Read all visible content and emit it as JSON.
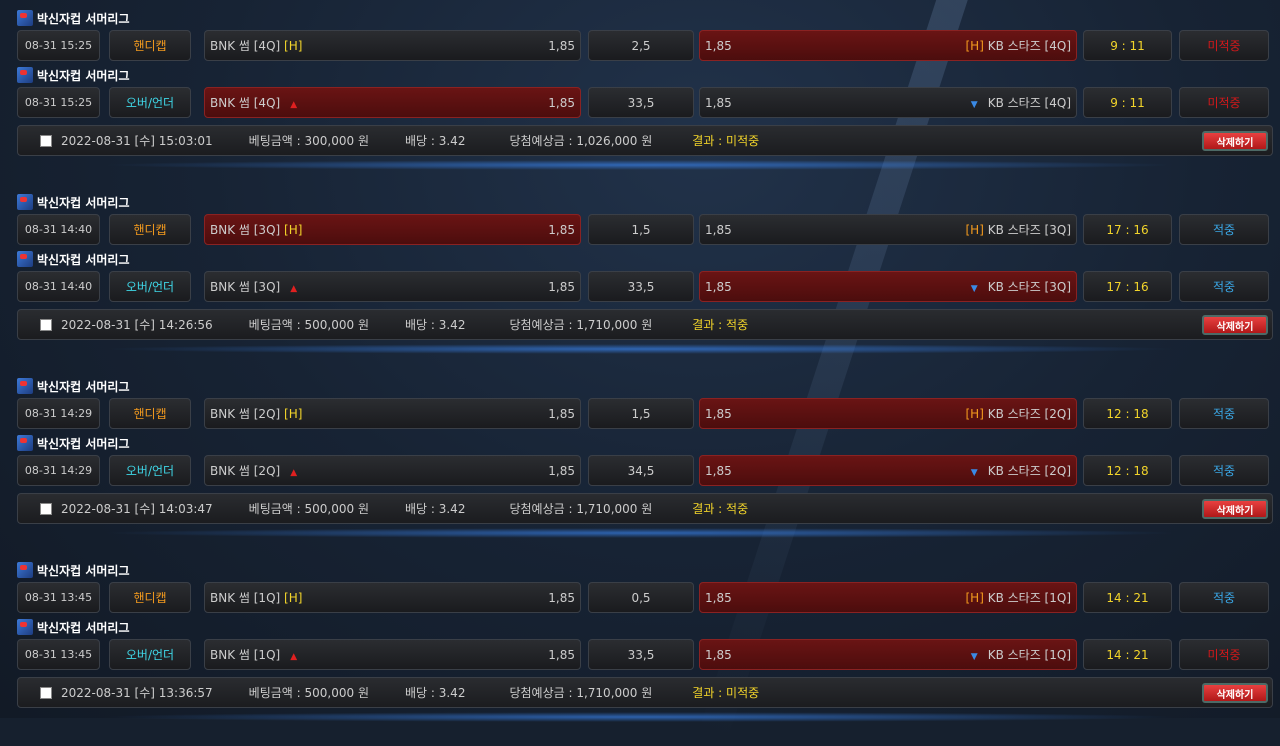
{
  "colors": {
    "selected": "#6a1414",
    "score": "#f2d42a",
    "win": "#3aa7e6",
    "lose": "#d3181a",
    "handicap": "#f39a1e",
    "overunder": "#3fd6e6"
  },
  "delete_label": "삭제하기",
  "groups": [
    {
      "bets": [
        {
          "league": "박신자컵 서머리그",
          "date": "08-31 15:25",
          "type": "핸디캡",
          "type_kind": "handicap",
          "home": "BNK 썸 [4Q]",
          "home_tag": "[H]",
          "home_odds": "1,85",
          "line": "2,5",
          "away_odds": "1,85",
          "away": "KB 스타즈 [4Q]",
          "away_tag": "[H]",
          "score": "9 : 11",
          "result": "미적중",
          "result_kind": "lose",
          "selected": "away"
        },
        {
          "league": "박신자컵 서머리그",
          "date": "08-31 15:25",
          "type": "오버/언더",
          "type_kind": "overunder",
          "home": "BNK 썸 [4Q]",
          "home_odds": "1,85",
          "line": "33,5",
          "away_odds": "1,85",
          "away": "KB 스타즈 [4Q]",
          "score": "9 : 11",
          "result": "미적중",
          "result_kind": "lose",
          "selected": "home"
        }
      ],
      "summary": {
        "datetime": "2022-08-31 [수] 15:03:01",
        "amount": "베팅금액 : 300,000 원",
        "odds": "배당 : 3.42",
        "expected": "당첨예상금 : 1,026,000 원",
        "result": "결과 : 미적중"
      }
    },
    {
      "bets": [
        {
          "league": "박신자컵 서머리그",
          "date": "08-31 14:40",
          "type": "핸디캡",
          "type_kind": "handicap",
          "home": "BNK 썸 [3Q]",
          "home_tag": "[H]",
          "home_odds": "1,85",
          "line": "1,5",
          "away_odds": "1,85",
          "away": "KB 스타즈 [3Q]",
          "away_tag": "[H]",
          "score": "17 : 16",
          "result": "적중",
          "result_kind": "win",
          "selected": "home"
        },
        {
          "league": "박신자컵 서머리그",
          "date": "08-31 14:40",
          "type": "오버/언더",
          "type_kind": "overunder",
          "home": "BNK 썸 [3Q]",
          "home_odds": "1,85",
          "line": "33,5",
          "away_odds": "1,85",
          "away": "KB 스타즈 [3Q]",
          "score": "17 : 16",
          "result": "적중",
          "result_kind": "win",
          "selected": "away"
        }
      ],
      "summary": {
        "datetime": "2022-08-31 [수] 14:26:56",
        "amount": "베팅금액 : 500,000 원",
        "odds": "배당 : 3.42",
        "expected": "당첨예상금 : 1,710,000 원",
        "result": "결과 : 적중"
      }
    },
    {
      "bets": [
        {
          "league": "박신자컵 서머리그",
          "date": "08-31 14:29",
          "type": "핸디캡",
          "type_kind": "handicap",
          "home": "BNK 썸 [2Q]",
          "home_tag": "[H]",
          "home_odds": "1,85",
          "line": "1,5",
          "away_odds": "1,85",
          "away": "KB 스타즈 [2Q]",
          "away_tag": "[H]",
          "score": "12 : 18",
          "result": "적중",
          "result_kind": "win",
          "selected": "away"
        },
        {
          "league": "박신자컵 서머리그",
          "date": "08-31 14:29",
          "type": "오버/언더",
          "type_kind": "overunder",
          "home": "BNK 썸 [2Q]",
          "home_odds": "1,85",
          "line": "34,5",
          "away_odds": "1,85",
          "away": "KB 스타즈 [2Q]",
          "score": "12 : 18",
          "result": "적중",
          "result_kind": "win",
          "selected": "away"
        }
      ],
      "summary": {
        "datetime": "2022-08-31 [수] 14:03:47",
        "amount": "베팅금액 : 500,000 원",
        "odds": "배당 : 3.42",
        "expected": "당첨예상금 : 1,710,000 원",
        "result": "결과 : 적중"
      }
    },
    {
      "bets": [
        {
          "league": "박신자컵 서머리그",
          "date": "08-31 13:45",
          "type": "핸디캡",
          "type_kind": "handicap",
          "home": "BNK 썸 [1Q]",
          "home_tag": "[H]",
          "home_odds": "1,85",
          "line": "0,5",
          "away_odds": "1,85",
          "away": "KB 스타즈 [1Q]",
          "away_tag": "[H]",
          "score": "14 : 21",
          "result": "적중",
          "result_kind": "win",
          "selected": "away"
        },
        {
          "league": "박신자컵 서머리그",
          "date": "08-31 13:45",
          "type": "오버/언더",
          "type_kind": "overunder",
          "home": "BNK 썸 [1Q]",
          "home_odds": "1,85",
          "line": "33,5",
          "away_odds": "1,85",
          "away": "KB 스타즈 [1Q]",
          "score": "14 : 21",
          "result": "미적중",
          "result_kind": "lose",
          "selected": "away"
        }
      ],
      "summary": {
        "datetime": "2022-08-31 [수] 13:36:57",
        "amount": "베팅금액 : 500,000 원",
        "odds": "배당 : 3.42",
        "expected": "당첨예상금 : 1,710,000 원",
        "result": "결과 : 미적중"
      }
    }
  ]
}
